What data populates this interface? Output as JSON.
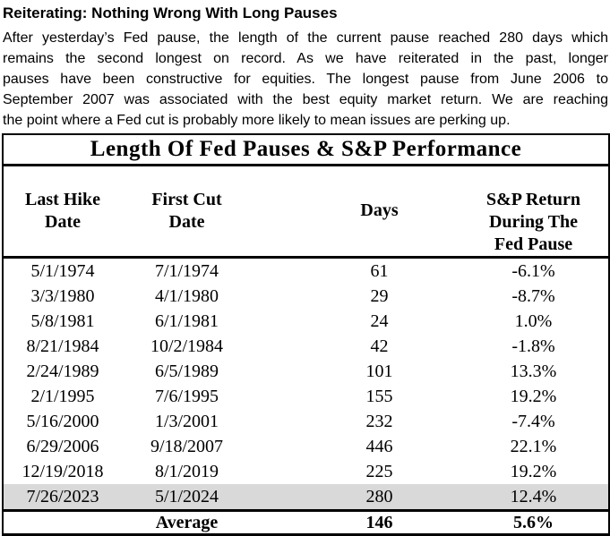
{
  "article": {
    "title": "Reiterating: Nothing Wrong With Long Pauses",
    "paragraph_lines": [
      "After yesterday’s Fed pause, the length of the current pause reached 280 days which",
      "remains the second longest on record. As we have reiterated in the past, longer",
      "pauses have been constructive for equities. The longest pause from June 2006 to",
      "September 2007 was associated with the best equity market return. We are reaching",
      "the point where a Fed cut is probably more likely to mean issues are perking up."
    ]
  },
  "table": {
    "title": "Length Of Fed Pauses & S&P Performance",
    "columns": [
      "Last Hike\nDate",
      "First Cut\nDate",
      "Days",
      "S&P Return\nDuring The\nFed Pause"
    ],
    "rows": [
      {
        "last_hike": "5/1/1974",
        "first_cut": "7/1/1974",
        "days": "61",
        "sp_return": "-6.1%",
        "highlighted": false
      },
      {
        "last_hike": "3/3/1980",
        "first_cut": "4/1/1980",
        "days": "29",
        "sp_return": "-8.7%",
        "highlighted": false
      },
      {
        "last_hike": "5/8/1981",
        "first_cut": "6/1/1981",
        "days": "24",
        "sp_return": "1.0%",
        "highlighted": false
      },
      {
        "last_hike": "8/21/1984",
        "first_cut": "10/2/1984",
        "days": "42",
        "sp_return": "-1.8%",
        "highlighted": false
      },
      {
        "last_hike": "2/24/1989",
        "first_cut": "6/5/1989",
        "days": "101",
        "sp_return": "13.3%",
        "highlighted": false
      },
      {
        "last_hike": "2/1/1995",
        "first_cut": "7/6/1995",
        "days": "155",
        "sp_return": "19.2%",
        "highlighted": false
      },
      {
        "last_hike": "5/16/2000",
        "first_cut": "1/3/2001",
        "days": "232",
        "sp_return": "-7.4%",
        "highlighted": false
      },
      {
        "last_hike": "6/29/2006",
        "first_cut": "9/18/2007",
        "days": "446",
        "sp_return": "22.1%",
        "highlighted": false
      },
      {
        "last_hike": "12/19/2018",
        "first_cut": "8/1/2019",
        "days": "225",
        "sp_return": "19.2%",
        "highlighted": false
      },
      {
        "last_hike": "7/26/2023",
        "first_cut": "5/1/2024",
        "days": "280",
        "sp_return": "12.4%",
        "highlighted": true
      }
    ],
    "footer": {
      "label": "Average",
      "days": "146",
      "sp_return": "5.6%"
    },
    "highlight_color": "#d9d9d9",
    "border_color": "#000000"
  }
}
